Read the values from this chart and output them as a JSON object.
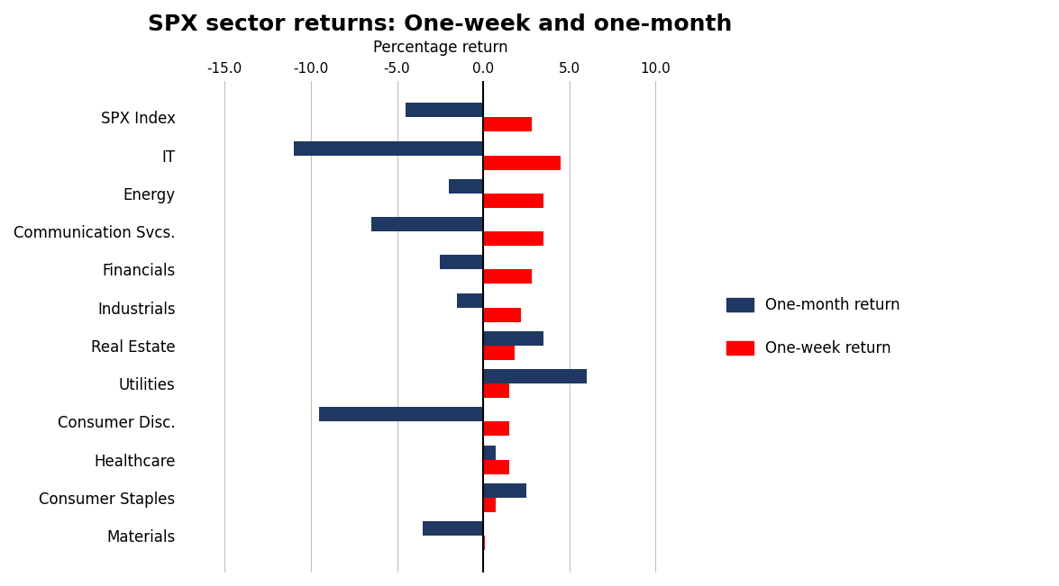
{
  "title": "SPX sector returns: One-week and one-month",
  "xlabel": "Percentage return",
  "categories": [
    "SPX Index",
    "IT",
    "Energy",
    "Communication Svcs.",
    "Financials",
    "Industrials",
    "Real Estate",
    "Utilities",
    "Consumer Disc.",
    "Healthcare",
    "Consumer Staples",
    "Materials"
  ],
  "one_month_return": [
    -4.5,
    -11.0,
    -2.0,
    -6.5,
    -2.5,
    -1.5,
    3.5,
    6.0,
    -9.5,
    0.7,
    2.5,
    -3.5
  ],
  "one_week_return": [
    2.8,
    4.5,
    3.5,
    3.5,
    2.8,
    2.2,
    1.8,
    1.5,
    1.5,
    1.5,
    0.7,
    0.1
  ],
  "month_color": "#1f3864",
  "week_color": "#ff0000",
  "xlim": [
    -17.5,
    12.5
  ],
  "xticks": [
    -15.0,
    -10.0,
    -5.0,
    0.0,
    5.0,
    10.0
  ],
  "legend_labels": [
    "One-month return",
    "One-week return"
  ],
  "background_color": "#ffffff",
  "grid_color": "#c0c0c0",
  "title_fontsize": 18,
  "label_fontsize": 12,
  "tick_fontsize": 11,
  "bar_height": 0.38
}
